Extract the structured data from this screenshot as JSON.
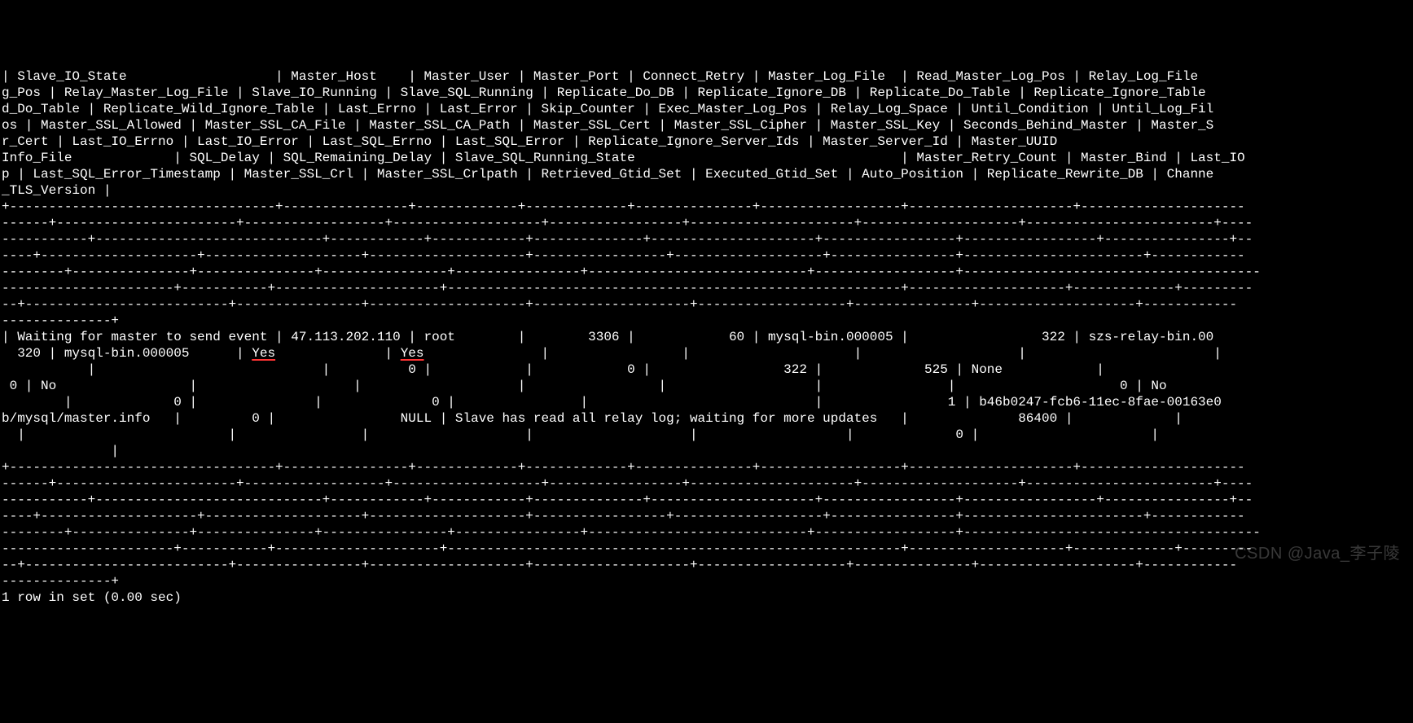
{
  "terminal": {
    "background_color": "#000000",
    "text_color": "#ffffff",
    "underline_color": "#ff3333",
    "font_family": "Courier New",
    "header_line_1": "| Slave_IO_State                   | Master_Host    | Master_User | Master_Port | Connect_Retry | Master_Log_File  | Read_Master_Log_Pos | Relay_Log_File",
    "header_line_2": "g_Pos | Relay_Master_Log_File | Slave_IO_Running | Slave_SQL_Running | Replicate_Do_DB | Replicate_Ignore_DB | Replicate_Do_Table | Replicate_Ignore_Table",
    "header_line_3": "d_Do_Table | Replicate_Wild_Ignore_Table | Last_Errno | Last_Error | Skip_Counter | Exec_Master_Log_Pos | Relay_Log_Space | Until_Condition | Until_Log_Fil",
    "header_line_4": "os | Master_SSL_Allowed | Master_SSL_CA_File | Master_SSL_CA_Path | Master_SSL_Cert | Master_SSL_Cipher | Master_SSL_Key | Seconds_Behind_Master | Master_S",
    "header_line_5": "r_Cert | Last_IO_Errno | Last_IO_Error | Last_SQL_Errno | Last_SQL_Error | Replicate_Ignore_Server_Ids | Master_Server_Id | Master_UUID",
    "header_line_6": "Info_File             | SQL_Delay | SQL_Remaining_Delay | Slave_SQL_Running_State                                  | Master_Retry_Count | Master_Bind | Last_IO",
    "header_line_7": "p | Last_SQL_Error_Timestamp | Master_SSL_Crl | Master_SSL_Crlpath | Retrieved_Gtid_Set | Executed_Gtid_Set | Auto_Position | Replicate_Rewrite_DB | Channe",
    "header_line_8": "_TLS_Version |",
    "sep_1": "+----------------------------------+----------------+-------------+-------------+---------------+------------------+---------------------+---------------------",
    "sep_2": "------+-----------------------+------------------+-------------------+-----------------+---------------------+--------------------+------------------------+----",
    "sep_3": "-----------+-----------------------------+------------+------------+--------------+---------------------+-----------------+-----------------+----------------+--",
    "sep_4": "----+--------------------+--------------------+--------------------+-----------------+-------------------+----------------+-----------------------+------------",
    "sep_5": "--------+---------------+---------------+----------------+----------------+----------------------------+------------------+--------------------------------------",
    "sep_6": "----------------------+-----------+---------------------+----------------------------------------------------------+--------------------+-------------+---------",
    "sep_7": "--+--------------------------+----------------+--------------------+--------------------+-------------------+---------------+--------------------+------------",
    "sep_8": "--------------+",
    "data_line_1_a": "| Waiting for master to send event | 47.113.202.110 | root        |        3306 |            60 | mysql-bin.000005 |                 322 | szs-relay-bin.00",
    "data_line_2_a": "  320 | mysql-bin.000005      | ",
    "data_yes_1": "Yes",
    "data_line_2_b": "              | ",
    "data_yes_2": "Yes",
    "data_line_2_c": "               |                 |                     |                    |                        |",
    "data_line_3": "           |                             |          0 |            |            0 |                 322 |             525 | None            |",
    "data_line_4": " 0 | No                 |                    |                    |                 |                   |                |                     0 | No",
    "data_line_5": "        |             0 |               |              0 |                |                             |                1 | b46b0247-fcb6-11ec-8fae-00163e0",
    "data_line_6": "b/mysql/master.info   |         0 |                NULL | Slave has read all relay log; waiting for more updates   |              86400 |             |",
    "data_line_7": "  |                          |                |                    |                    |                   |             0 |                      |",
    "data_line_8": "              |",
    "footer": "1 row in set (0.00 sec)"
  },
  "watermark": {
    "text": "CSDN @Java_李子陵"
  }
}
